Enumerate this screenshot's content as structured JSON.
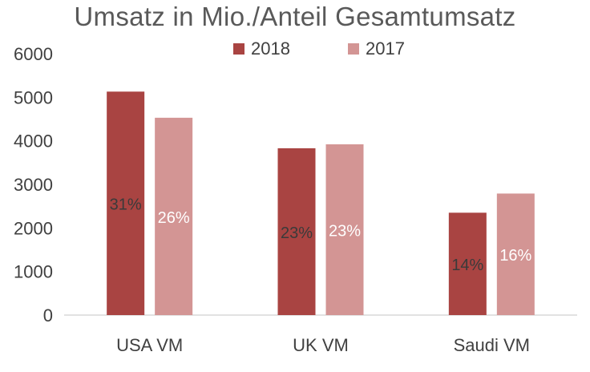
{
  "chart_data": {
    "type": "bar",
    "title": "Umsatz in Mio./Anteil Gesamtumsatz",
    "categories": [
      "USA VM",
      "UK VM",
      "Saudi VM"
    ],
    "series": [
      {
        "name": "2018",
        "color": "#a94442",
        "values": [
          5130,
          3830,
          2350
        ],
        "labels": [
          "31%",
          "23%",
          "14%"
        ]
      },
      {
        "name": "2017",
        "color": "#d39594",
        "values": [
          4530,
          3920,
          2790
        ],
        "labels": [
          "26%",
          "23%",
          "16%"
        ]
      }
    ],
    "ylim": [
      0,
      6000
    ],
    "yticks": [
      "0",
      "1000",
      "2000",
      "3000",
      "4000",
      "5000",
      "6000"
    ],
    "xlabel": "",
    "ylabel": "",
    "grid": false,
    "legend_position": "top"
  }
}
